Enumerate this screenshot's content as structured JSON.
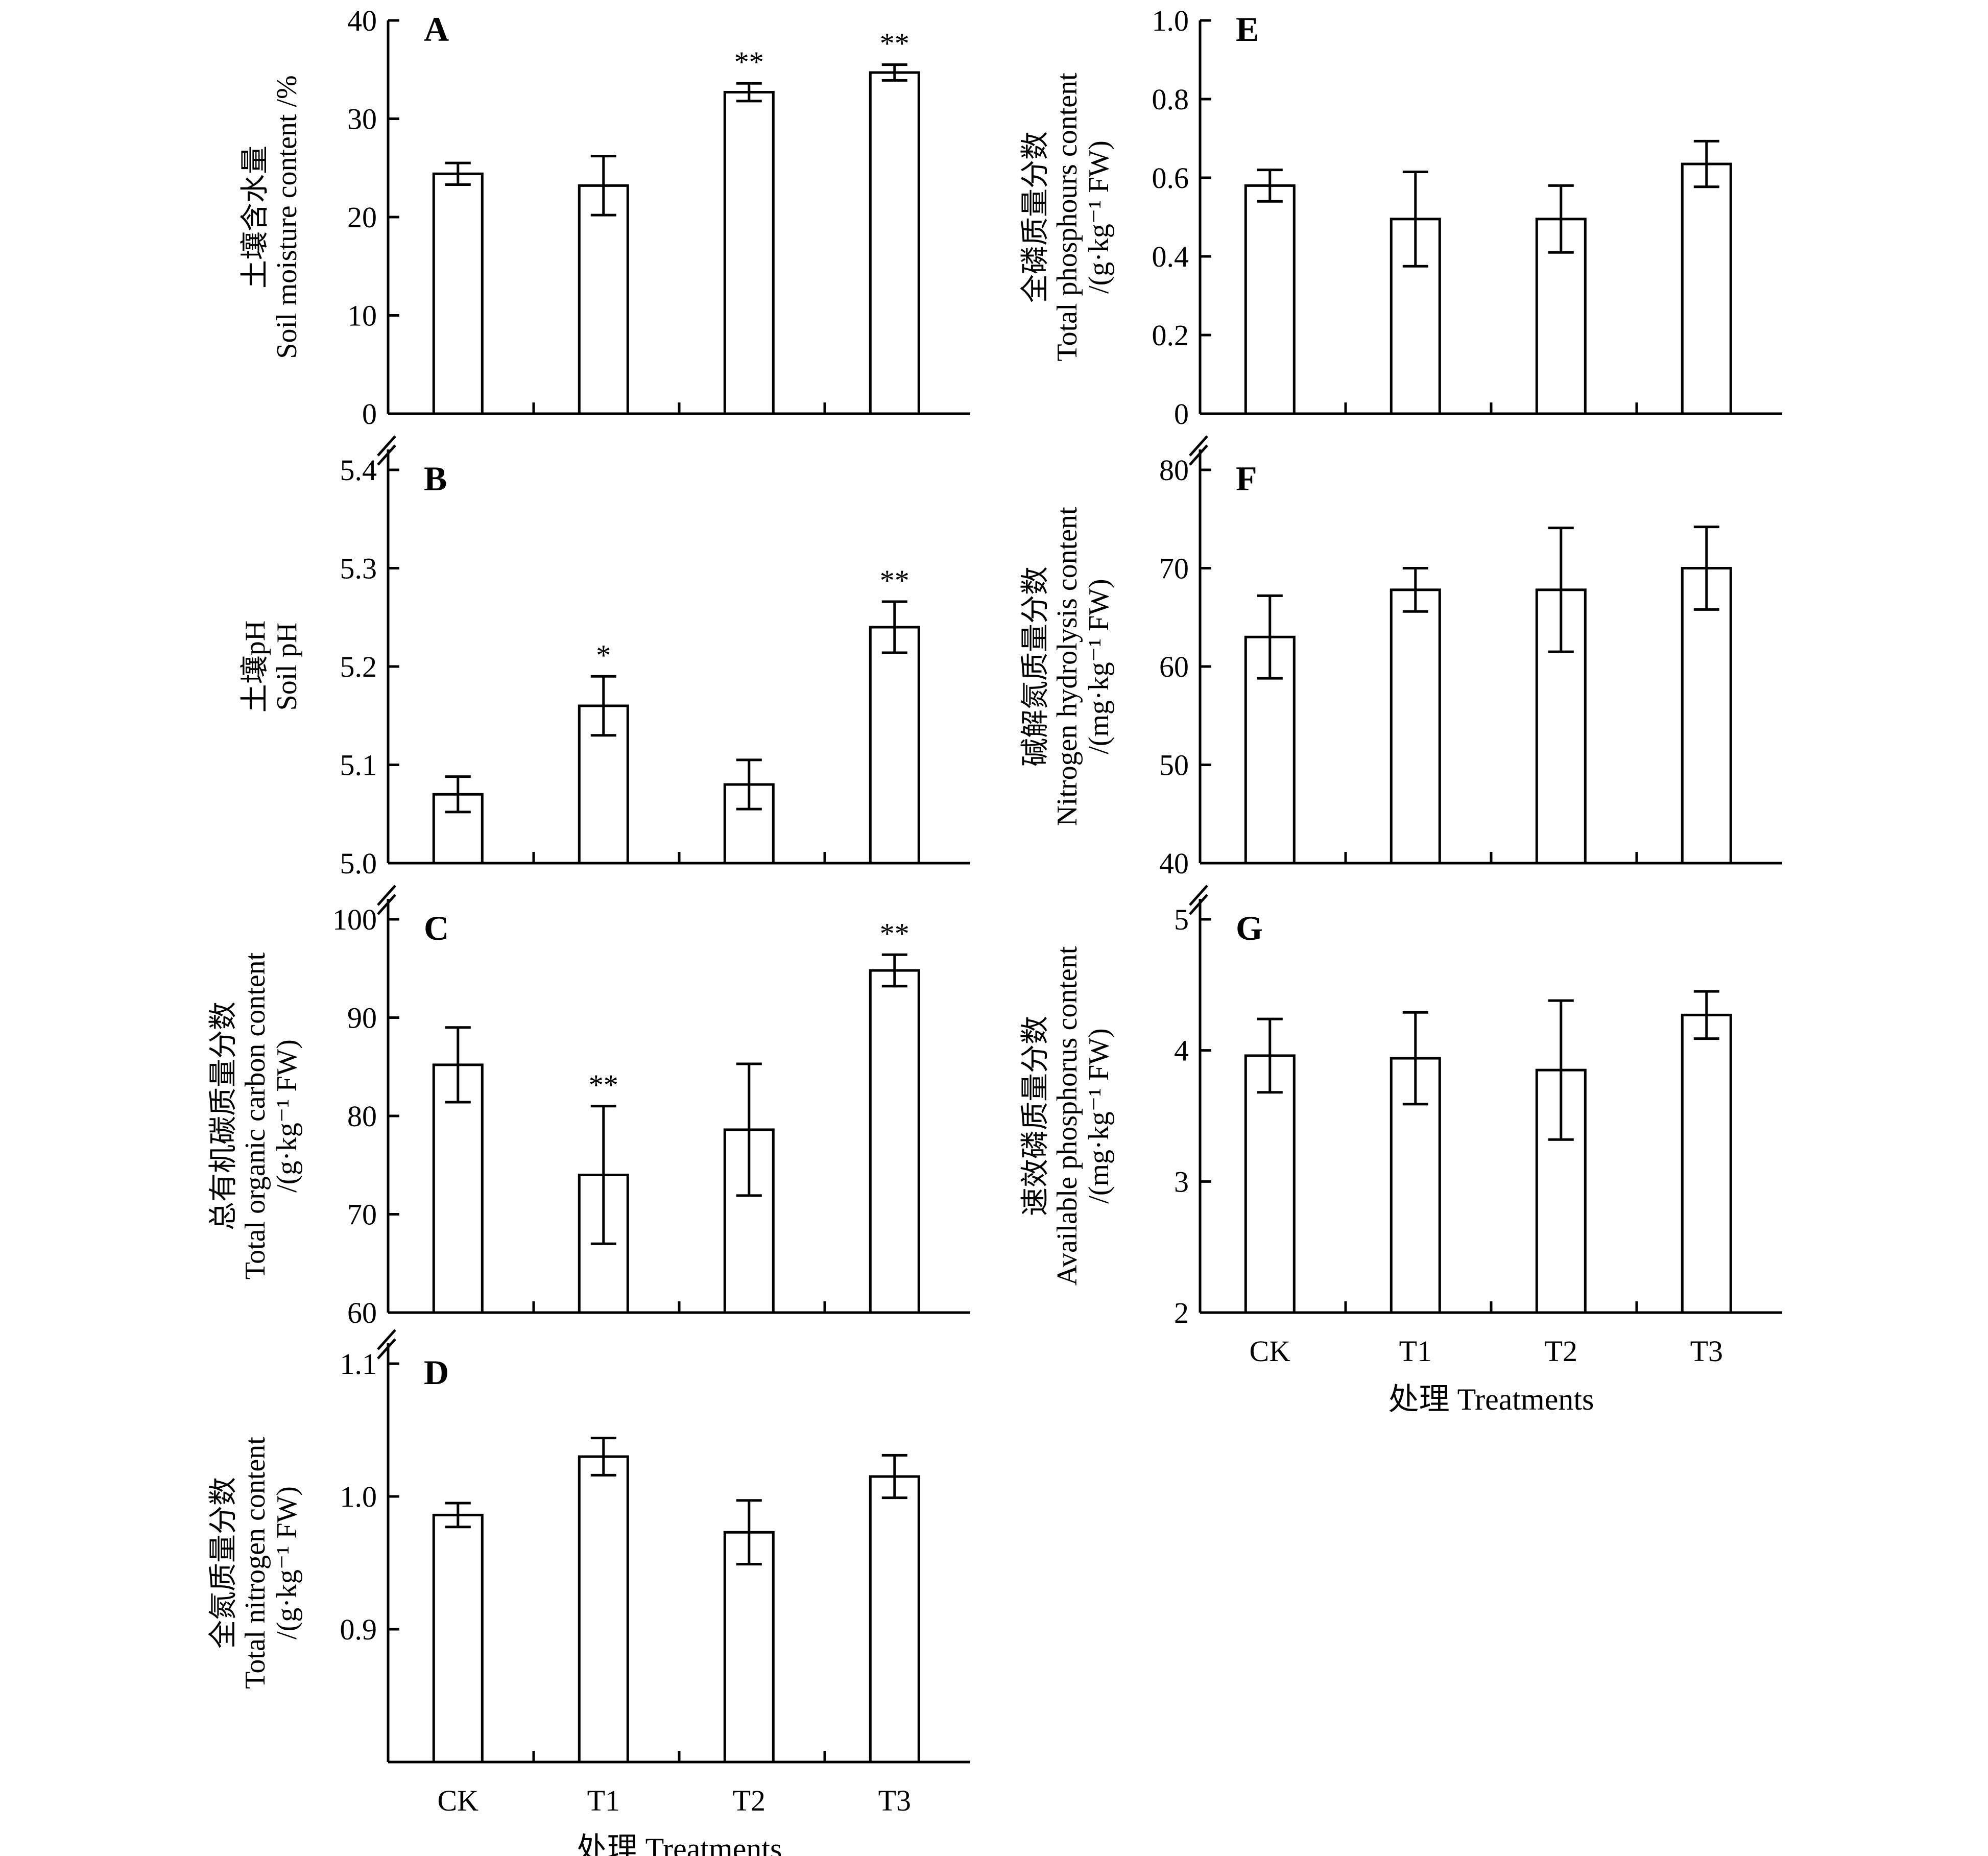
{
  "chart_data": [
    {
      "panel": "A",
      "type": "bar",
      "categories": [
        "CK",
        "T1",
        "T2",
        "T3"
      ],
      "values": [
        24.4,
        23.2,
        32.7,
        34.7
      ],
      "errors": [
        1.1,
        3.0,
        0.9,
        0.8
      ],
      "significance": [
        "",
        "",
        "**",
        "**"
      ],
      "ylabel": [
        "土壤含水量",
        "Soil moisture content /%"
      ],
      "ylim": [
        0,
        40
      ],
      "yticks": [
        "0",
        "10",
        "20",
        "30",
        "40"
      ],
      "tick_values": [
        0,
        10,
        20,
        30,
        40
      ],
      "axis_break": false,
      "show_x_labels": false,
      "xlabel": ""
    },
    {
      "panel": "B",
      "type": "bar",
      "categories": [
        "CK",
        "T1",
        "T2",
        "T3"
      ],
      "values": [
        5.07,
        5.16,
        5.08,
        5.24
      ],
      "errors": [
        0.018,
        0.03,
        0.025,
        0.026
      ],
      "significance": [
        "",
        "*",
        "",
        "**"
      ],
      "ylabel": [
        "土壤pH",
        "Soil pH"
      ],
      "ylim": [
        5.0,
        5.4
      ],
      "yticks": [
        "5.0",
        "5.1",
        "5.2",
        "5.3",
        "5.4"
      ],
      "tick_values": [
        5.0,
        5.1,
        5.2,
        5.3,
        5.4
      ],
      "axis_break": true,
      "show_x_labels": false,
      "xlabel": ""
    },
    {
      "panel": "C",
      "type": "bar",
      "categories": [
        "CK",
        "T1",
        "T2",
        "T3"
      ],
      "values": [
        85.2,
        74.0,
        78.6,
        94.8
      ],
      "errors": [
        3.8,
        7.0,
        6.7,
        1.6
      ],
      "significance": [
        "",
        "**",
        "",
        "**"
      ],
      "ylabel": [
        "总有机碳质量分数",
        "Total organic carbon content",
        "/(g·kg⁻¹ FW)"
      ],
      "ylim": [
        60,
        100
      ],
      "yticks": [
        "60",
        "70",
        "80",
        "90",
        "100"
      ],
      "tick_values": [
        60,
        70,
        80,
        90,
        100
      ],
      "axis_break": true,
      "show_x_labels": false,
      "xlabel": ""
    },
    {
      "panel": "D",
      "type": "bar",
      "categories": [
        "CK",
        "T1",
        "T2",
        "T3"
      ],
      "values": [
        0.986,
        1.03,
        0.973,
        1.015
      ],
      "errors": [
        0.009,
        0.014,
        0.024,
        0.016
      ],
      "significance": [
        "",
        "",
        "",
        ""
      ],
      "ylabel": [
        "全氮质量分数",
        "Total nitrogen content",
        "/(g·kg⁻¹ FW)"
      ],
      "ylim": [
        0.8,
        1.1
      ],
      "yticks": [
        "0.9",
        "1.0",
        "1.1"
      ],
      "tick_values": [
        0.9,
        1.0,
        1.1
      ],
      "axis_break": true,
      "show_x_labels": true,
      "xlabel": "处理 Treatments"
    },
    {
      "panel": "E",
      "type": "bar",
      "categories": [
        "CK",
        "T1",
        "T2",
        "T3"
      ],
      "values": [
        0.58,
        0.495,
        0.495,
        0.635
      ],
      "errors": [
        0.04,
        0.12,
        0.085,
        0.058
      ],
      "significance": [
        "",
        "",
        "",
        ""
      ],
      "ylabel": [
        "全磷质量分数",
        "Total phosphours content",
        "/(g·kg⁻¹ FW)"
      ],
      "ylim": [
        0,
        1.0
      ],
      "yticks": [
        "0",
        "0.2",
        "0.4",
        "0.6",
        "0.8",
        "1.0"
      ],
      "tick_values": [
        0,
        0.2,
        0.4,
        0.6,
        0.8,
        1.0
      ],
      "axis_break": false,
      "show_x_labels": false,
      "xlabel": ""
    },
    {
      "panel": "F",
      "type": "bar",
      "categories": [
        "CK",
        "T1",
        "T2",
        "T3"
      ],
      "values": [
        63.0,
        67.8,
        67.8,
        70.0
      ],
      "errors": [
        4.2,
        2.2,
        6.3,
        4.2
      ],
      "significance": [
        "",
        "",
        "",
        ""
      ],
      "ylabel": [
        "碱解氮质量分数",
        "Nitrogen hydrolysis content",
        "/(mg·kg⁻¹ FW)"
      ],
      "ylim": [
        40,
        80
      ],
      "yticks": [
        "40",
        "50",
        "60",
        "70",
        "80"
      ],
      "tick_values": [
        40,
        50,
        60,
        70,
        80
      ],
      "axis_break": true,
      "show_x_labels": false,
      "xlabel": ""
    },
    {
      "panel": "G",
      "type": "bar",
      "categories": [
        "CK",
        "T1",
        "T2",
        "T3"
      ],
      "values": [
        3.96,
        3.94,
        3.85,
        4.27
      ],
      "errors": [
        0.28,
        0.35,
        0.53,
        0.18
      ],
      "significance": [
        "",
        "",
        "",
        ""
      ],
      "ylabel": [
        "速效磷质量分数",
        "Available phosphorus content",
        "/(mg·kg⁻¹ FW)"
      ],
      "ylim": [
        2,
        5
      ],
      "yticks": [
        "2",
        "3",
        "4",
        "5"
      ],
      "tick_values": [
        2,
        3,
        4,
        5
      ],
      "axis_break": true,
      "show_x_labels": true,
      "xlabel": "处理 Treatments"
    }
  ]
}
